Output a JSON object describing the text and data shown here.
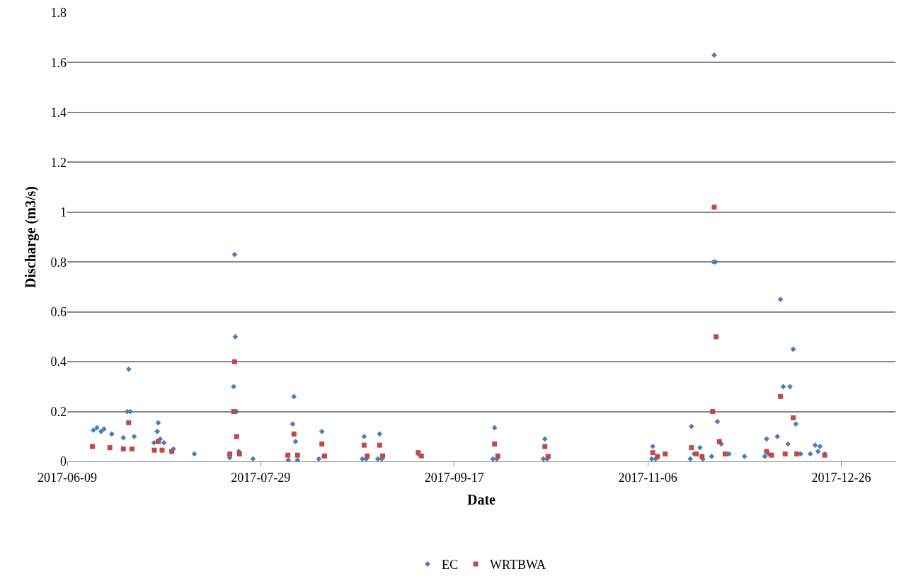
{
  "chart_data": {
    "type": "scatter",
    "xlabel": "Date",
    "ylabel": "Discharge (m3/s)",
    "xlim": [
      "2017-06-09",
      "2018-01-09"
    ],
    "xticks": [
      "2017-06-09",
      "2017-07-29",
      "2017-09-17",
      "2017-11-06",
      "2017-12-26"
    ],
    "ylim": [
      0,
      1.8
    ],
    "yticks": [
      0,
      0.2,
      0.4,
      0.6,
      0.8,
      1,
      1.2,
      1.4,
      1.6,
      1.8
    ],
    "grid": "y",
    "legend": "bottom",
    "series": [
      {
        "name": "EC",
        "color": "#4a7ebb",
        "marker": "diamond",
        "x": [
          "2017-06-15T18:00",
          "2017-06-16T16:00",
          "2017-06-17T18:00",
          "2017-06-18T12:00",
          "2017-06-20T12:00",
          "2017-06-23T12:00",
          "2017-06-24T12:00",
          "2017-06-24T21:00",
          "2017-06-25T06:00",
          "2017-06-26T07:00",
          "2017-07-01T10:00",
          "2017-07-02T06:00",
          "2017-07-02T12:00",
          "2017-07-03T00:00",
          "2017-07-04T00:00",
          "2017-07-06T10:00",
          "2017-07-11T20:00",
          "2017-07-21T00:00",
          "2017-07-22T00:00",
          "2017-07-22T06:00",
          "2017-07-22T10:00",
          "2017-07-22T18:00",
          "2017-07-23T08:00",
          "2017-07-27T00:00",
          "2017-08-05T03:00",
          "2017-08-06T06:00",
          "2017-08-06T14:00",
          "2017-08-07T00:00",
          "2017-08-07T12:00",
          "2017-08-13T00:00",
          "2017-08-13T19:00",
          "2017-08-14T06:00",
          "2017-08-24T06:00",
          "2017-08-24T17:00",
          "2017-08-25T06:00",
          "2017-08-28T06:00",
          "2017-08-28T17:00",
          "2017-08-29T06:00",
          "2017-09-07T17:00",
          "2017-09-27T00:00",
          "2017-09-27T10:00",
          "2017-09-28T00:00",
          "2017-10-10T00:00",
          "2017-10-10T10:00",
          "2017-10-11T00:00",
          "2017-11-07T00:00",
          "2017-11-07T07:00",
          "2017-11-08T00:00",
          "2017-11-17T00:00",
          "2017-11-17T07:00",
          "2017-11-18T00:00",
          "2017-11-19T12:00",
          "2017-11-20T06:00",
          "2017-11-22T12:00",
          "2017-11-23T00:00",
          "2017-11-23T04:00",
          "2017-11-23T12:00",
          "2017-11-24T00:00",
          "2017-11-25T00:00",
          "2017-11-27T00:00",
          "2017-12-01T00:00",
          "2017-12-06T06:00",
          "2017-12-06T17:00",
          "2017-12-07T06:00",
          "2017-12-09T12:00",
          "2017-12-10T07:00",
          "2017-12-11T00:00",
          "2017-12-12T06:00",
          "2017-12-12T18:00",
          "2017-12-13T14:00",
          "2017-12-14T06:00",
          "2017-12-15T12:00",
          "2017-12-18T00:00",
          "2017-12-19T06:00",
          "2017-12-20T00:00",
          "2017-12-20T12:00",
          "2017-12-21T17:00"
        ],
        "values": [
          0.125,
          0.135,
          0.12,
          0.13,
          0.11,
          0.095,
          0.2,
          0.37,
          0.2,
          0.1,
          0.075,
          0.12,
          0.155,
          0.09,
          0.075,
          0.05,
          0.03,
          0.015,
          0.3,
          0.83,
          0.5,
          0.2,
          0.04,
          0.01,
          0.005,
          0.15,
          0.26,
          0.08,
          0.005,
          0.01,
          0.12,
          0.02,
          0.01,
          0.1,
          0.01,
          0.01,
          0.11,
          0.01,
          0.03,
          0.01,
          0.135,
          0.01,
          0.01,
          0.09,
          0.01,
          0.01,
          0.06,
          0.01,
          0.01,
          0.14,
          0.03,
          0.055,
          0.01,
          0.02,
          0.8,
          1.63,
          0.8,
          0.16,
          0.07,
          0.03,
          0.02,
          0.02,
          0.09,
          0.03,
          0.1,
          0.65,
          0.3,
          0.07,
          0.3,
          0.45,
          0.15,
          0.03,
          0.03,
          0.065,
          0.04,
          0.06,
          0.03
        ]
      },
      {
        "name": "WRTBWA",
        "color": "#be4b48",
        "marker": "square",
        "x": [
          "2017-06-15T12:00",
          "2017-06-20T00:00",
          "2017-06-23T12:00",
          "2017-06-24T21:00",
          "2017-06-25T18:00",
          "2017-07-01T12:00",
          "2017-07-02T12:00",
          "2017-07-03T12:00",
          "2017-07-06T00:00",
          "2017-07-21T00:00",
          "2017-07-22T00:00",
          "2017-07-22T06:00",
          "2017-07-22T18:00",
          "2017-07-23T12:00",
          "2017-08-05T00:00",
          "2017-08-06T14:00",
          "2017-08-07T12:00",
          "2017-08-13T19:00",
          "2017-08-14T12:00",
          "2017-08-24T17:00",
          "2017-08-25T12:00",
          "2017-08-28T17:00",
          "2017-08-29T12:00",
          "2017-09-07T17:00",
          "2017-09-08T12:00",
          "2017-09-27T10:00",
          "2017-09-28T06:00",
          "2017-10-10T10:00",
          "2017-10-11T06:00",
          "2017-11-07T07:00",
          "2017-11-08T12:00",
          "2017-11-10T12:00",
          "2017-11-17T07:00",
          "2017-11-18T12:00",
          "2017-11-20T00:00",
          "2017-11-22T18:00",
          "2017-11-23T04:00",
          "2017-11-23T16:00",
          "2017-11-24T12:00",
          "2017-11-26T00:00",
          "2017-12-06T17:00",
          "2017-12-08T00:00",
          "2017-12-10T07:00",
          "2017-12-11T12:00",
          "2017-12-13T14:00",
          "2017-12-14T12:00",
          "2017-12-21T17:00"
        ],
        "values": [
          0.06,
          0.055,
          0.05,
          0.155,
          0.05,
          0.045,
          0.08,
          0.045,
          0.04,
          0.03,
          0.2,
          0.4,
          0.1,
          0.03,
          0.025,
          0.11,
          0.025,
          0.07,
          0.022,
          0.065,
          0.022,
          0.065,
          0.022,
          0.035,
          0.022,
          0.07,
          0.022,
          0.06,
          0.02,
          0.035,
          0.02,
          0.03,
          0.055,
          0.03,
          0.02,
          0.2,
          1.02,
          0.5,
          0.08,
          0.03,
          0.04,
          0.025,
          0.26,
          0.03,
          0.175,
          0.03,
          0.025
        ]
      }
    ]
  }
}
